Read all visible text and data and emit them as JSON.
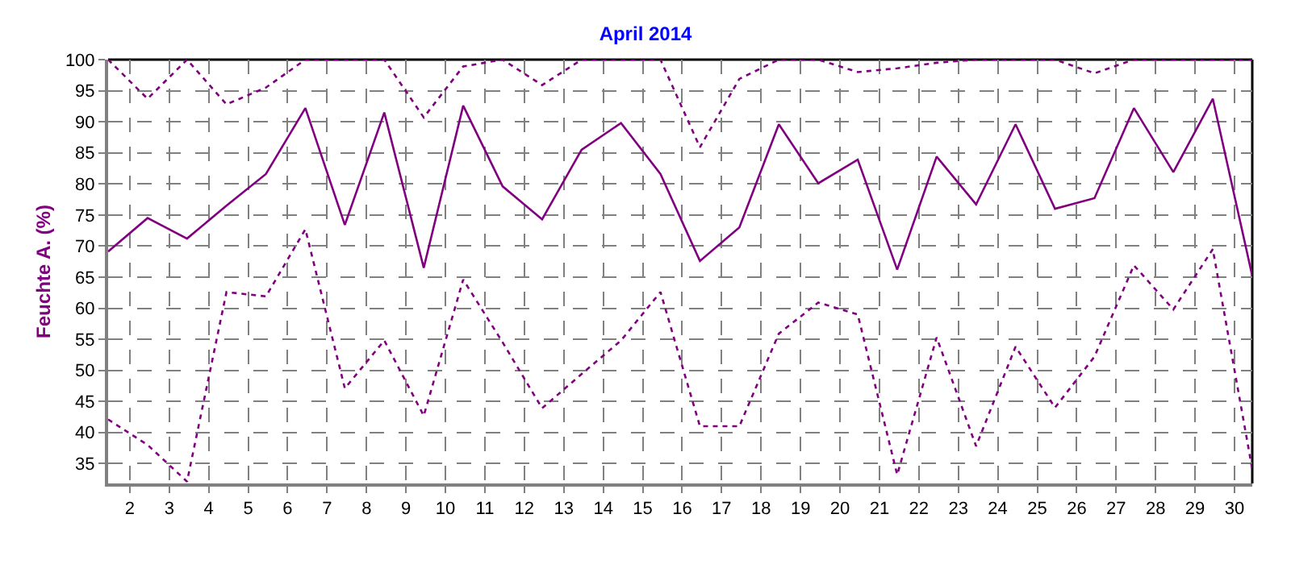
{
  "chart_data": {
    "type": "line",
    "title": "April 2014",
    "ylabel": "Feuchte A. (%)",
    "x": [
      1.45,
      2.45,
      3.45,
      4.45,
      5.45,
      6.45,
      7.45,
      8.45,
      9.45,
      10.45,
      11.45,
      12.45,
      13.45,
      14.45,
      15.45,
      16.45,
      17.45,
      18.45,
      19.45,
      20.45,
      21.45,
      22.45,
      23.45,
      24.45,
      25.45,
      26.45,
      27.45,
      28.45,
      29.45,
      30.45
    ],
    "series": [
      {
        "color": "#800080",
        "line_style": "dotted",
        "values": [
          100,
          93.7,
          100,
          92.8,
          95.5,
          100,
          100,
          100,
          90.7,
          98.9,
          100,
          95.9,
          100,
          100,
          100,
          85.9,
          96.9,
          100,
          100,
          98,
          98.6,
          99.5,
          100,
          100,
          100,
          97.8,
          100,
          100,
          100,
          100
        ]
      },
      {
        "color": "#800080",
        "line_style": "solid",
        "values": [
          69.1,
          74.5,
          71.2,
          76.5,
          81.6,
          92.2,
          73.4,
          91.5,
          66.5,
          92.6,
          79.6,
          74.3,
          85.5,
          89.8,
          81.6,
          67.6,
          73,
          89.6,
          80.1,
          83.9,
          66.2,
          84.4,
          76.7,
          89.6,
          76,
          77.7,
          92.2,
          81.9,
          93.7,
          65.2
        ]
      },
      {
        "color": "#800080",
        "line_style": "dotted",
        "values": [
          42.1,
          38,
          32.1,
          62.6,
          61.9,
          72.7,
          47.1,
          54.8,
          42.7,
          64.6,
          54.5,
          43.9,
          49.4,
          54.8,
          62.6,
          41,
          41,
          55.9,
          60.9,
          59,
          33.2,
          55.3,
          37.8,
          53.8,
          44,
          52.2,
          66.9,
          59.8,
          69.5,
          34.1
        ]
      }
    ],
    "xlim": [
      1.45,
      30.45
    ],
    "xticks": [
      2,
      3,
      4,
      5,
      6,
      7,
      8,
      9,
      10,
      11,
      12,
      13,
      14,
      15,
      16,
      17,
      18,
      19,
      20,
      21,
      22,
      23,
      24,
      25,
      26,
      27,
      28,
      29,
      30
    ],
    "ylim": [
      31.8,
      100
    ],
    "yticks": [
      35,
      40,
      45,
      50,
      55,
      60,
      65,
      70,
      75,
      80,
      85,
      90,
      95,
      100
    ],
    "grid": true,
    "marker": "none"
  }
}
